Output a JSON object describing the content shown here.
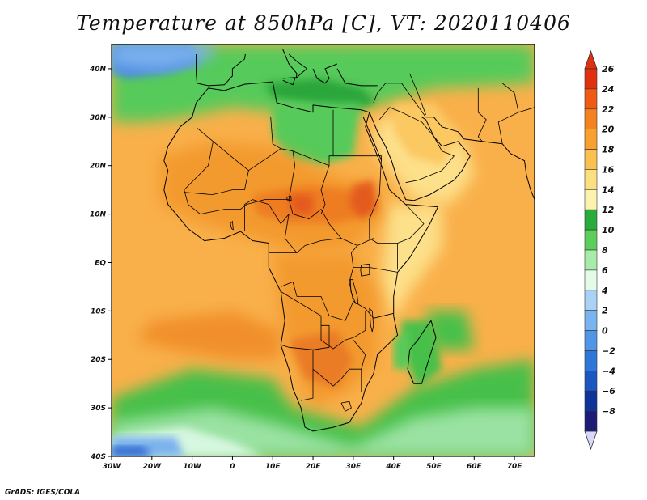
{
  "title": "Temperature at 850hPa [C], VT: 2020110406",
  "credit": "GrADS: IGES/COLA",
  "map": {
    "lon_range": [
      -30,
      75
    ],
    "lat_range": [
      -40,
      45
    ],
    "x_ticks": [
      {
        "lon": -30,
        "label": "30W"
      },
      {
        "lon": -20,
        "label": "20W"
      },
      {
        "lon": -10,
        "label": "10W"
      },
      {
        "lon": 0,
        "label": "0"
      },
      {
        "lon": 10,
        "label": "10E"
      },
      {
        "lon": 20,
        "label": "20E"
      },
      {
        "lon": 30,
        "label": "30E"
      },
      {
        "lon": 40,
        "label": "40E"
      },
      {
        "lon": 50,
        "label": "50E"
      },
      {
        "lon": 60,
        "label": "60E"
      },
      {
        "lon": 70,
        "label": "70E"
      }
    ],
    "y_ticks": [
      {
        "lat": 40,
        "label": "40N"
      },
      {
        "lat": 30,
        "label": "30N"
      },
      {
        "lat": 20,
        "label": "20N"
      },
      {
        "lat": 10,
        "label": "10N"
      },
      {
        "lat": 0,
        "label": "EQ"
      },
      {
        "lat": -10,
        "label": "10S"
      },
      {
        "lat": -20,
        "label": "20S"
      },
      {
        "lat": -30,
        "label": "30S"
      },
      {
        "lat": -40,
        "label": "40S"
      }
    ]
  },
  "colorbar": {
    "labels": [
      "26",
      "24",
      "22",
      "20",
      "18",
      "16",
      "14",
      "12",
      "10",
      "8",
      "6",
      "4",
      "2",
      "0",
      "−2",
      "−4",
      "−6",
      "−8"
    ],
    "colors": [
      "#e03010",
      "#f05a14",
      "#f5821e",
      "#f8a030",
      "#fac050",
      "#fce080",
      "#fdf3b0",
      "#2aac3c",
      "#5ccf5a",
      "#a8ecaa",
      "#e4fbe8",
      "#aad2f5",
      "#78b4f0",
      "#5096e6",
      "#2e76d8",
      "#1c56c2",
      "#0e349a",
      "#1c1c78"
    ],
    "top_color": "#e03010",
    "bottom_color": "#d8d8f8"
  },
  "field": {
    "ocean": "#f9b04a",
    "north_cool": "#56ca5a",
    "north_cool_dark": "#2aa63a",
    "saharan_warm": "#f7b24c",
    "sahel_hot": "#f39a2e",
    "sahel_core": "#ee7d22",
    "ethiopia_hot": "#e35a1c",
    "arabia_warm": "#fbc862",
    "arabia_cool": "#fde08a",
    "southern_green": "#46c04a",
    "southern_light": "#9ae2a2",
    "southern_pale": "#d6f7e0",
    "blue_light": "#7cb2ee",
    "blue_deep": "#2e68d0",
    "med_blue": "#4f8ce2",
    "se_atlantic_hot": "#f1902a",
    "kalahari": "#ea7b26"
  }
}
